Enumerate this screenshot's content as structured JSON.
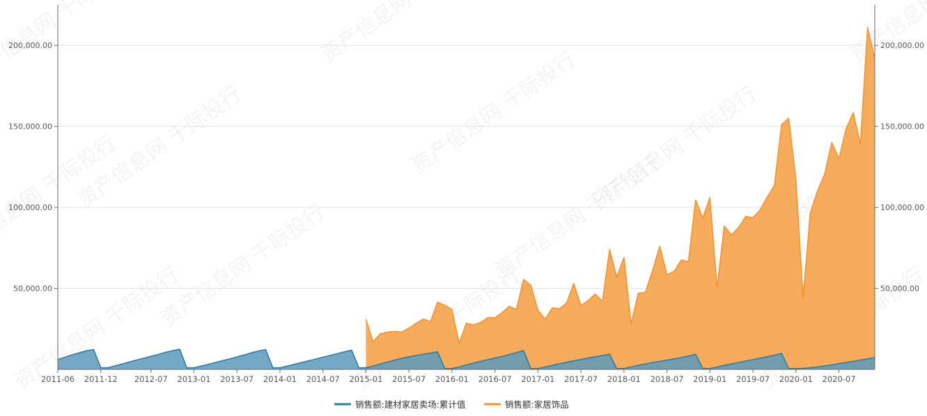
{
  "chart_data": {
    "type": "area",
    "title": "",
    "xlabel": "",
    "ylabel": "",
    "x_range": [
      "2011-06",
      "2020-12"
    ],
    "ylim": [
      0,
      225000
    ],
    "y_ticks": [
      50000,
      100000,
      150000,
      200000
    ],
    "y_tick_labels": [
      "50,000.00",
      "100,000.00",
      "150,000.00",
      "200,000.00"
    ],
    "x_tick_labels": [
      "2011-06",
      "2011-12",
      "2012-07",
      "2013-01",
      "2013-07",
      "2014-01",
      "2014-07",
      "2015-01",
      "2015-07",
      "2016-01",
      "2016-07",
      "2017-01",
      "2017-07",
      "2018-01",
      "2018-07",
      "2019-01",
      "2019-07",
      "2020-01",
      "2020-07"
    ],
    "grid": "horizontal",
    "legend_position": "bottom",
    "watermark": "资产信息网 千际投行",
    "series": [
      {
        "name": "销售额:建材家居卖场:累计值",
        "color": "#2e7ca3",
        "fill": "#5c99bb",
        "points": [
          [
            "2011-06",
            6000
          ],
          [
            "2011-07",
            7500
          ],
          [
            "2011-08",
            9000
          ],
          [
            "2011-09",
            10200
          ],
          [
            "2011-10",
            11500
          ],
          [
            "2011-11",
            12300
          ],
          [
            "2011-12",
            1000
          ],
          [
            "2012-01",
            1000
          ],
          [
            "2012-02",
            2200
          ],
          [
            "2012-03",
            3400
          ],
          [
            "2012-04",
            4600
          ],
          [
            "2012-05",
            5800
          ],
          [
            "2012-06",
            6900
          ],
          [
            "2012-07",
            8100
          ],
          [
            "2012-08",
            9200
          ],
          [
            "2012-09",
            10500
          ],
          [
            "2012-10",
            11500
          ],
          [
            "2012-11",
            12500
          ],
          [
            "2012-12",
            1000
          ],
          [
            "2013-01",
            1000
          ],
          [
            "2013-02",
            2000
          ],
          [
            "2013-03",
            3100
          ],
          [
            "2013-04",
            4300
          ],
          [
            "2013-05",
            5400
          ],
          [
            "2013-06",
            6500
          ],
          [
            "2013-07",
            7700
          ],
          [
            "2013-08",
            8900
          ],
          [
            "2013-09",
            10200
          ],
          [
            "2013-10",
            11300
          ],
          [
            "2013-11",
            12300
          ],
          [
            "2013-12",
            1000
          ],
          [
            "2014-01",
            1000
          ],
          [
            "2014-02",
            2000
          ],
          [
            "2014-03",
            3100
          ],
          [
            "2014-04",
            4200
          ],
          [
            "2014-05",
            5300
          ],
          [
            "2014-06",
            6400
          ],
          [
            "2014-07",
            7500
          ],
          [
            "2014-08",
            8600
          ],
          [
            "2014-09",
            9700
          ],
          [
            "2014-10",
            10800
          ],
          [
            "2014-11",
            11900
          ],
          [
            "2014-12",
            1000
          ],
          [
            "2015-01",
            1000
          ],
          [
            "2015-02",
            2100
          ],
          [
            "2015-03",
            3300
          ],
          [
            "2015-04",
            4500
          ],
          [
            "2015-05",
            5700
          ],
          [
            "2015-06",
            6800
          ],
          [
            "2015-07",
            7800
          ],
          [
            "2015-08",
            8600
          ],
          [
            "2015-09",
            9400
          ],
          [
            "2015-10",
            10100
          ],
          [
            "2015-11",
            10800
          ],
          [
            "2015-12",
            500
          ],
          [
            "2016-01",
            500
          ],
          [
            "2016-02",
            1500
          ],
          [
            "2016-03",
            2700
          ],
          [
            "2016-04",
            3900
          ],
          [
            "2016-05",
            5000
          ],
          [
            "2016-06",
            6000
          ],
          [
            "2016-07",
            7000
          ],
          [
            "2016-08",
            8000
          ],
          [
            "2016-09",
            9200
          ],
          [
            "2016-10",
            10400
          ],
          [
            "2016-11",
            11600
          ],
          [
            "2016-12",
            500
          ],
          [
            "2017-01",
            500
          ],
          [
            "2017-02",
            1500
          ],
          [
            "2017-03",
            2500
          ],
          [
            "2017-04",
            3500
          ],
          [
            "2017-05",
            4400
          ],
          [
            "2017-06",
            5300
          ],
          [
            "2017-07",
            6200
          ],
          [
            "2017-08",
            7000
          ],
          [
            "2017-09",
            7800
          ],
          [
            "2017-10",
            8600
          ],
          [
            "2017-11",
            9300
          ],
          [
            "2017-12",
            500
          ],
          [
            "2018-01",
            500
          ],
          [
            "2018-02",
            1500
          ],
          [
            "2018-03",
            2500
          ],
          [
            "2018-04",
            3400
          ],
          [
            "2018-05",
            4300
          ],
          [
            "2018-06",
            5000
          ],
          [
            "2018-07",
            5700
          ],
          [
            "2018-08",
            6500
          ],
          [
            "2018-09",
            7300
          ],
          [
            "2018-10",
            8200
          ],
          [
            "2018-11",
            9300
          ],
          [
            "2018-12",
            500
          ],
          [
            "2019-01",
            500
          ],
          [
            "2019-02",
            1500
          ],
          [
            "2019-03",
            2500
          ],
          [
            "2019-04",
            3400
          ],
          [
            "2019-05",
            4300
          ],
          [
            "2019-06",
            5200
          ],
          [
            "2019-07",
            6000
          ],
          [
            "2019-08",
            6900
          ],
          [
            "2019-09",
            7800
          ],
          [
            "2019-10",
            8700
          ],
          [
            "2019-11",
            9900
          ],
          [
            "2019-12",
            500
          ],
          [
            "2020-01",
            500
          ],
          [
            "2020-02",
            600
          ],
          [
            "2020-03",
            1000
          ],
          [
            "2020-04",
            1500
          ],
          [
            "2020-05",
            2100
          ],
          [
            "2020-06",
            2800
          ],
          [
            "2020-07",
            3600
          ],
          [
            "2020-08",
            4300
          ],
          [
            "2020-09",
            5000
          ],
          [
            "2020-10",
            5800
          ],
          [
            "2020-11",
            6500
          ],
          [
            "2020-12",
            7300
          ]
        ]
      },
      {
        "name": "销售额:家居饰品",
        "color": "#f2932f",
        "fill": "#f7ab5c",
        "points": [
          [
            "2015-01",
            31000
          ],
          [
            "2015-02",
            17000
          ],
          [
            "2015-03",
            22000
          ],
          [
            "2015-04",
            23000
          ],
          [
            "2015-05",
            23500
          ],
          [
            "2015-06",
            23000
          ],
          [
            "2015-07",
            25500
          ],
          [
            "2015-08",
            28500
          ],
          [
            "2015-09",
            31000
          ],
          [
            "2015-10",
            29500
          ],
          [
            "2015-11",
            41500
          ],
          [
            "2015-12",
            39500
          ],
          [
            "2016-01",
            37000
          ],
          [
            "2016-02",
            16000
          ],
          [
            "2016-03",
            28500
          ],
          [
            "2016-04",
            27500
          ],
          [
            "2016-05",
            29000
          ],
          [
            "2016-06",
            32000
          ],
          [
            "2016-07",
            32000
          ],
          [
            "2016-08",
            35000
          ],
          [
            "2016-09",
            39000
          ],
          [
            "2016-10",
            37000
          ],
          [
            "2016-11",
            55500
          ],
          [
            "2016-12",
            52000
          ],
          [
            "2017-01",
            36500
          ],
          [
            "2017-02",
            31000
          ],
          [
            "2017-03",
            38000
          ],
          [
            "2017-04",
            37500
          ],
          [
            "2017-05",
            41000
          ],
          [
            "2017-06",
            53000
          ],
          [
            "2017-07",
            39500
          ],
          [
            "2017-08",
            42500
          ],
          [
            "2017-09",
            46500
          ],
          [
            "2017-10",
            42000
          ],
          [
            "2017-11",
            74000
          ],
          [
            "2017-12",
            57000
          ],
          [
            "2018-01",
            69000
          ],
          [
            "2018-02",
            28000
          ],
          [
            "2018-03",
            47000
          ],
          [
            "2018-04",
            47500
          ],
          [
            "2018-05",
            61000
          ],
          [
            "2018-06",
            76000
          ],
          [
            "2018-07",
            58500
          ],
          [
            "2018-08",
            60500
          ],
          [
            "2018-09",
            67500
          ],
          [
            "2018-10",
            66500
          ],
          [
            "2018-11",
            104500
          ],
          [
            "2018-12",
            93500
          ],
          [
            "2019-01",
            106000
          ],
          [
            "2019-02",
            50000
          ],
          [
            "2019-03",
            88500
          ],
          [
            "2019-04",
            83000
          ],
          [
            "2019-05",
            87500
          ],
          [
            "2019-06",
            94500
          ],
          [
            "2019-07",
            93500
          ],
          [
            "2019-08",
            98500
          ],
          [
            "2019-09",
            106500
          ],
          [
            "2019-10",
            113500
          ],
          [
            "2019-11",
            151000
          ],
          [
            "2019-12",
            155000
          ],
          [
            "2020-01",
            117000
          ],
          [
            "2020-02",
            44000
          ],
          [
            "2020-03",
            96500
          ],
          [
            "2020-04",
            110000
          ],
          [
            "2020-05",
            120500
          ],
          [
            "2020-06",
            140000
          ],
          [
            "2020-07",
            130000
          ],
          [
            "2020-08",
            148500
          ],
          [
            "2020-09",
            158500
          ],
          [
            "2020-10",
            139000
          ],
          [
            "2020-11",
            211000
          ],
          [
            "2020-12",
            192000
          ]
        ]
      }
    ]
  }
}
